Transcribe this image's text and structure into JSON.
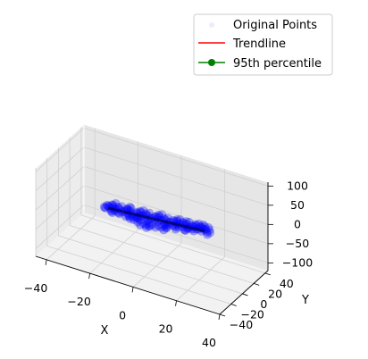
{
  "chart_data": {
    "type": "scatter",
    "projection": "3d",
    "title": "",
    "xlabel": "X",
    "ylabel": "Y",
    "zlabel": "",
    "xlim": [
      -45,
      40
    ],
    "ylim": [
      -40,
      45
    ],
    "zlim": [
      -120,
      110
    ],
    "xticks": [
      -40,
      -20,
      0,
      20,
      40
    ],
    "yticks": [
      -40,
      -20,
      0,
      20,
      40
    ],
    "zticks": [
      -100,
      -50,
      0,
      50,
      100
    ],
    "grid": true,
    "legend": {
      "placement": "top-right",
      "entries": [
        "Original Points",
        "Trendline",
        "95th percentile"
      ]
    },
    "series": [
      {
        "name": "Original Points",
        "kind": "scatter",
        "color": "#0000ff",
        "alpha": 0.1,
        "points": [
          [
            -20,
            -4,
            0
          ],
          [
            -18,
            -3,
            2
          ],
          [
            -16,
            -5,
            -1
          ],
          [
            -14,
            -2,
            1
          ],
          [
            -12,
            -4,
            3
          ],
          [
            -10,
            -1,
            0
          ],
          [
            -8,
            -3,
            -2
          ],
          [
            -6,
            0,
            2
          ],
          [
            -4,
            -2,
            1
          ],
          [
            -2,
            1,
            0
          ],
          [
            0,
            -1,
            3
          ],
          [
            2,
            2,
            1
          ],
          [
            4,
            0,
            -1
          ],
          [
            6,
            3,
            2
          ],
          [
            8,
            1,
            0
          ],
          [
            10,
            4,
            3
          ],
          [
            12,
            2,
            1
          ],
          [
            14,
            5,
            0
          ],
          [
            16,
            3,
            2
          ],
          [
            18,
            6,
            1
          ],
          [
            -19,
            -6,
            -2
          ],
          [
            -15,
            -7,
            0
          ],
          [
            -11,
            -5,
            -3
          ],
          [
            -7,
            -4,
            -1
          ],
          [
            -3,
            -3,
            -2
          ],
          [
            1,
            -2,
            0
          ],
          [
            5,
            -1,
            -2
          ],
          [
            9,
            0,
            -1
          ],
          [
            13,
            1,
            -3
          ],
          [
            17,
            2,
            0
          ],
          [
            -17,
            0,
            1
          ],
          [
            -13,
            1,
            2
          ],
          [
            -9,
            2,
            0
          ],
          [
            -5,
            3,
            1
          ],
          [
            -1,
            4,
            2
          ],
          [
            3,
            5,
            0
          ],
          [
            7,
            6,
            1
          ],
          [
            11,
            7,
            2
          ],
          [
            15,
            8,
            0
          ],
          [
            19,
            9,
            1
          ],
          [
            -6,
            -9,
            -3
          ],
          [
            -2,
            -10,
            -2
          ],
          [
            2,
            -8,
            -4
          ],
          [
            -4,
            -12,
            -3
          ],
          [
            0,
            -11,
            -1
          ],
          [
            -8,
            -8,
            -2
          ],
          [
            4,
            -6,
            -3
          ],
          [
            -10,
            -7,
            -4
          ],
          [
            6,
            -9,
            -2
          ],
          [
            -1,
            -13,
            -3
          ],
          [
            20,
            4,
            2
          ],
          [
            22,
            6,
            1
          ],
          [
            21,
            8,
            3
          ],
          [
            23,
            3,
            0
          ],
          [
            18,
            10,
            2
          ],
          [
            -21,
            -2,
            1
          ],
          [
            -22,
            -5,
            0
          ],
          [
            -20,
            1,
            2
          ],
          [
            -18,
            -8,
            -1
          ],
          [
            -23,
            -3,
            -2
          ],
          [
            10,
            -3,
            -1
          ],
          [
            12,
            8,
            1
          ],
          [
            8,
            7,
            2
          ],
          [
            -14,
            3,
            1
          ],
          [
            -12,
            -7,
            -2
          ],
          [
            14,
            -1,
            0
          ],
          [
            16,
            10,
            1
          ],
          [
            6,
            -4,
            -2
          ],
          [
            -8,
            4,
            1
          ],
          [
            0,
            6,
            2
          ]
        ]
      },
      {
        "name": "Trendline",
        "kind": "line",
        "color": "#ff0000",
        "points": [
          [
            -21,
            -4,
            0
          ],
          [
            21,
            6,
            1
          ]
        ]
      },
      {
        "name": "95th percentile",
        "kind": "line-marker",
        "color": "#008000",
        "points": []
      }
    ]
  }
}
